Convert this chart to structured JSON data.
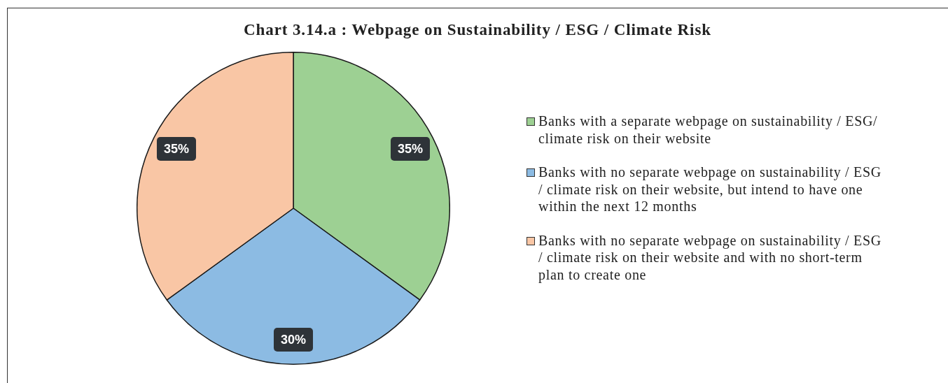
{
  "chart_data": {
    "type": "pie",
    "title": "Chart 3.14.a : Webpage on Sustainability / ESG / Climate Risk",
    "categories": [
      "Banks with a separate webpage on sustainability / ESG/ climate risk on their website",
      "Banks with no separate webpage on sustainability / ESG / climate risk on their website, but intend to have one within the next 12 months",
      "Banks with no separate webpage on sustainability / ESG / climate risk on their website and with no short-term plan to create one"
    ],
    "values": [
      35,
      30,
      35
    ],
    "colors": [
      "#9dd093",
      "#8cbbe3",
      "#f9c6a5"
    ],
    "value_labels": [
      "35%",
      "30%",
      "35%"
    ],
    "legend": "right"
  }
}
